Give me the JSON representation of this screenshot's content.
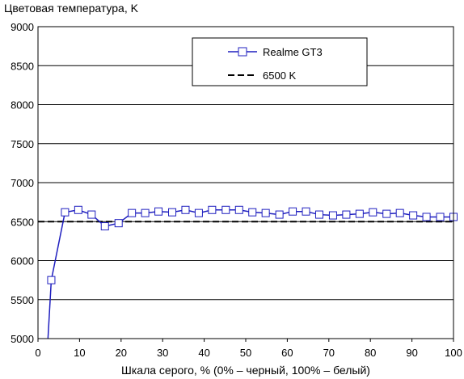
{
  "chart_data": {
    "type": "line",
    "title": "",
    "ylabel": "Цветовая температура, K",
    "xlabel": "Шкала серого, % (0% – черный, 100% – белый)",
    "xlim": [
      0,
      100
    ],
    "ylim": [
      5000,
      9000
    ],
    "x_ticks": [
      0,
      10,
      20,
      30,
      40,
      50,
      60,
      70,
      80,
      90,
      100
    ],
    "y_ticks": [
      5000,
      5500,
      6000,
      6500,
      7000,
      7500,
      8000,
      8500,
      9000
    ],
    "grid": "horizontal",
    "legend_position": "top-right",
    "series": [
      {
        "name": "Realme GT3",
        "color": "#1f1fbf",
        "marker": "square",
        "x": [
          3.2,
          6.5,
          9.7,
          12.9,
          16.1,
          19.4,
          22.6,
          25.8,
          29.0,
          32.3,
          35.5,
          38.7,
          41.9,
          45.2,
          48.4,
          51.6,
          54.8,
          58.1,
          61.3,
          64.5,
          67.7,
          71.0,
          74.2,
          77.4,
          80.6,
          83.9,
          87.1,
          90.3,
          93.5,
          96.8,
          100
        ],
        "y": [
          5750,
          6620,
          6650,
          6590,
          6440,
          6480,
          6610,
          6610,
          6630,
          6620,
          6650,
          6610,
          6650,
          6650,
          6650,
          6620,
          6610,
          6590,
          6630,
          6630,
          6590,
          6580,
          6590,
          6600,
          6620,
          6600,
          6610,
          6580,
          6560,
          6560,
          6560
        ],
        "lead_in": {
          "x": [
            2.4,
            3.2
          ],
          "y": [
            5000,
            5750
          ]
        }
      },
      {
        "name": "6500 K",
        "color": "#000000",
        "style": "dashed",
        "x": [
          0,
          100
        ],
        "y": [
          6500,
          6500
        ]
      }
    ]
  }
}
